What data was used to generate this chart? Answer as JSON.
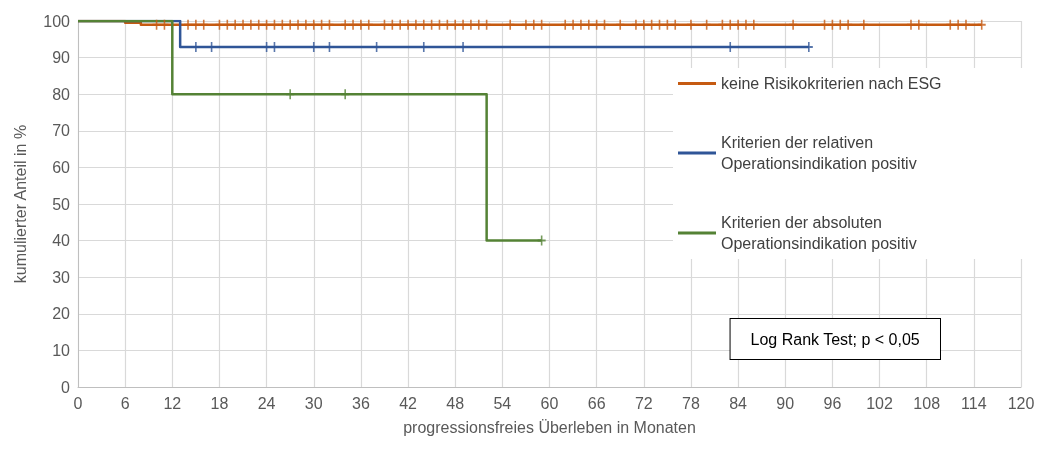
{
  "chart_data": {
    "type": "step",
    "xlabel": "progressionsfreies Überleben in Monaten",
    "ylabel": "kumulierter Anteil in %",
    "xlim": [
      0,
      120
    ],
    "xticks": [
      0,
      6,
      12,
      18,
      24,
      30,
      36,
      42,
      48,
      54,
      60,
      66,
      72,
      78,
      84,
      90,
      96,
      102,
      108,
      114,
      120
    ],
    "ylim": [
      0,
      100
    ],
    "yticks": [
      0,
      10,
      20,
      30,
      40,
      50,
      60,
      70,
      80,
      90,
      100
    ],
    "grid": true,
    "legend": "right",
    "annotations": [
      "Log Rank Test; p < 0,05"
    ],
    "series": [
      {
        "name": "keine Risikokriterien nach ESG",
        "color": "#c55a11",
        "x": [
          0,
          6,
          8,
          115
        ],
        "values": [
          100,
          99.5,
          99,
          99
        ]
      },
      {
        "name": "Kriterien der relativen Operationsindikation positiv",
        "color": "#2f5597",
        "x": [
          0,
          13,
          93
        ],
        "values": [
          100,
          92.9,
          92.9
        ]
      },
      {
        "name": "Kriterien der absoluten Operationsindikation positiv",
        "color": "#548235",
        "x": [
          0,
          12,
          52,
          59
        ],
        "values": [
          100,
          80,
          40,
          40
        ]
      },
      {
        "type": "scatter",
        "marker": "cross",
        "color": "#c55a11",
        "x": [
          10,
          11,
          14,
          15,
          16,
          18,
          19,
          20,
          21,
          22,
          23,
          24,
          25,
          26,
          27,
          28,
          29,
          30,
          31,
          32,
          34,
          35,
          36,
          37,
          39,
          40,
          41,
          42,
          43,
          44,
          45,
          46,
          47,
          48,
          49,
          50,
          51,
          52,
          55,
          57,
          58,
          59,
          62,
          63,
          64,
          65,
          66,
          67,
          69,
          71,
          72,
          73,
          74,
          75,
          76,
          78,
          80,
          82,
          83,
          84,
          85,
          86,
          91,
          95,
          96,
          97,
          98,
          100,
          106,
          107,
          111,
          112,
          113,
          115
        ],
        "values": [
          99,
          99,
          99,
          99,
          99,
          99,
          99,
          99,
          99,
          99,
          99,
          99,
          99,
          99,
          99,
          99,
          99,
          99,
          99,
          99,
          99,
          99,
          99,
          99,
          99,
          99,
          99,
          99,
          99,
          99,
          99,
          99,
          99,
          99,
          99,
          99,
          99,
          99,
          99,
          99,
          99,
          99,
          99,
          99,
          99,
          99,
          99,
          99,
          99,
          99,
          99,
          99,
          99,
          99,
          99,
          99,
          99,
          99,
          99,
          99,
          99,
          99,
          99,
          99,
          99,
          99,
          99,
          99,
          99,
          99,
          99,
          99,
          99,
          99
        ]
      },
      {
        "type": "scatter",
        "marker": "cross",
        "color": "#2f5597",
        "x": [
          15,
          17,
          24,
          25,
          30,
          32,
          38,
          44,
          49,
          83,
          93
        ],
        "values": [
          92.9,
          92.9,
          92.9,
          92.9,
          92.9,
          92.9,
          92.9,
          92.9,
          92.9,
          92.9,
          92.9
        ]
      },
      {
        "type": "scatter",
        "marker": "cross",
        "color": "#548235",
        "x": [
          27,
          34,
          59
        ],
        "values": [
          80,
          80,
          40
        ]
      }
    ]
  }
}
